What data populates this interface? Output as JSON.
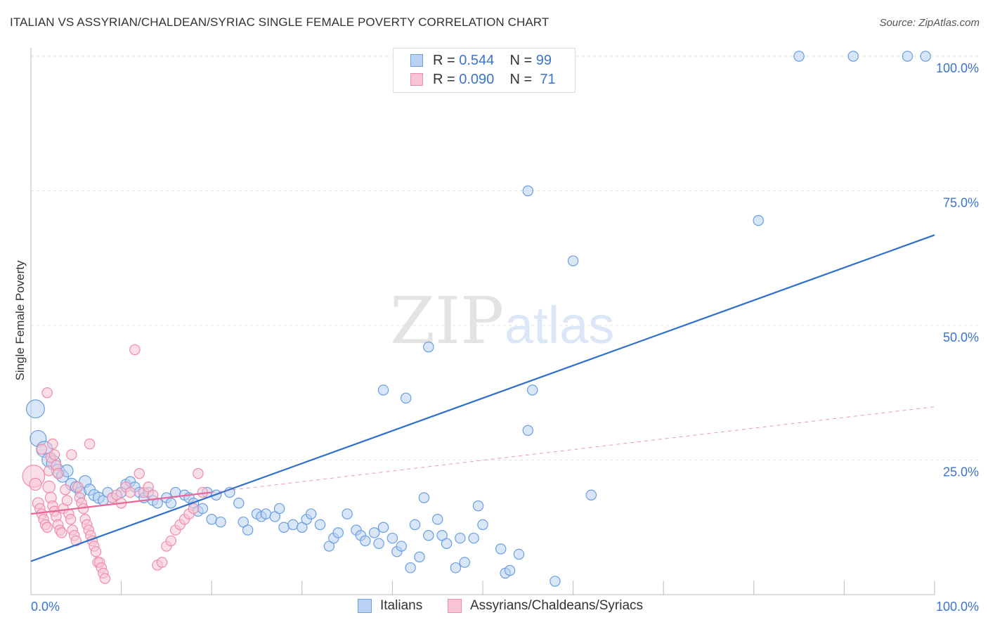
{
  "chart_data": {
    "type": "scatter",
    "title": "ITALIAN VS ASSYRIAN/CHALDEAN/SYRIAC SINGLE FEMALE POVERTY CORRELATION CHART",
    "source": "Source: ZipAtlas.com",
    "ylabel": "Single Female Poverty",
    "xlabel": "",
    "xlim": [
      0,
      100
    ],
    "ylim": [
      0,
      100
    ],
    "x_tick_labels": [
      "0.0%",
      "100.0%"
    ],
    "y_ticks": [
      25,
      50,
      75,
      100
    ],
    "y_tick_labels": [
      "25.0%",
      "50.0%",
      "75.0%",
      "100.0%"
    ],
    "grid": "dashed horizontal",
    "watermark": "ZIPatlas",
    "legend_position": "top-center",
    "stats": [
      {
        "r_label": "R =",
        "r_value": "0.544",
        "n_label": "N =",
        "n_value": "99"
      },
      {
        "r_label": "R =",
        "r_value": "0.090",
        "n_label": "N =",
        "n_value": "71"
      }
    ],
    "series": [
      {
        "name": "Italians",
        "color": "#6a9fe0",
        "fill": "#b9d1f3",
        "trend": {
          "x": [
            0,
            100
          ],
          "y": [
            6.2,
            66.8
          ],
          "style": "solid",
          "color": "#2f6fcc"
        },
        "points": [
          [
            0.5,
            34.5,
            18
          ],
          [
            0.8,
            29,
            16
          ],
          [
            1.5,
            27,
            16
          ],
          [
            2,
            25,
            14
          ],
          [
            2.5,
            24.5,
            14
          ],
          [
            3,
            23,
            13
          ],
          [
            3.5,
            22,
            12
          ],
          [
            4,
            23,
            12
          ],
          [
            4.5,
            20.5,
            12
          ],
          [
            5,
            20,
            11
          ],
          [
            5.5,
            19,
            11
          ],
          [
            6,
            21,
            12
          ],
          [
            6.5,
            19.5,
            11
          ],
          [
            7,
            18.5,
            11
          ],
          [
            7.5,
            18,
            11
          ],
          [
            8,
            17.5,
            10
          ],
          [
            8.5,
            19,
            10
          ],
          [
            9,
            18,
            10
          ],
          [
            10,
            19,
            10
          ],
          [
            10.5,
            20.5,
            10
          ],
          [
            11,
            21,
            10
          ],
          [
            11.5,
            20,
            10
          ],
          [
            12,
            19,
            10
          ],
          [
            12.5,
            18,
            10
          ],
          [
            13,
            19,
            10
          ],
          [
            13.5,
            17.5,
            10
          ],
          [
            14,
            17,
            10
          ],
          [
            15,
            18,
            10
          ],
          [
            15.5,
            17,
            10
          ],
          [
            16,
            19,
            10
          ],
          [
            17,
            18.5,
            10
          ],
          [
            17.5,
            18,
            10
          ],
          [
            18,
            17,
            10
          ],
          [
            18.5,
            15.5,
            10
          ],
          [
            19,
            16,
            10
          ],
          [
            19.5,
            19,
            10
          ],
          [
            20,
            14,
            10
          ],
          [
            20.5,
            18.5,
            10
          ],
          [
            21,
            13.5,
            10
          ],
          [
            22,
            19,
            10
          ],
          [
            23,
            17,
            10
          ],
          [
            23.5,
            13.5,
            10
          ],
          [
            24,
            12,
            10
          ],
          [
            25,
            15,
            10
          ],
          [
            25.5,
            14.5,
            10
          ],
          [
            26,
            15,
            10
          ],
          [
            27,
            14.5,
            10
          ],
          [
            27.5,
            16,
            10
          ],
          [
            28,
            12.5,
            10
          ],
          [
            29,
            13,
            10
          ],
          [
            30,
            12.5,
            10
          ],
          [
            30.5,
            14,
            10
          ],
          [
            31,
            15,
            10
          ],
          [
            32,
            13,
            10
          ],
          [
            33,
            9,
            10
          ],
          [
            33.5,
            10.5,
            10
          ],
          [
            34,
            11.5,
            10
          ],
          [
            35,
            15,
            10
          ],
          [
            36,
            12,
            10
          ],
          [
            36.5,
            11,
            10
          ],
          [
            37,
            10,
            10
          ],
          [
            38,
            11.5,
            10
          ],
          [
            38.5,
            9.5,
            10
          ],
          [
            39,
            12.5,
            10
          ],
          [
            40,
            10.5,
            10
          ],
          [
            40.5,
            8,
            10
          ],
          [
            41,
            9,
            10
          ],
          [
            42,
            5,
            10
          ],
          [
            42.5,
            13,
            10
          ],
          [
            43,
            7,
            10
          ],
          [
            43.5,
            18,
            10
          ],
          [
            44,
            11,
            10
          ],
          [
            45,
            14,
            10
          ],
          [
            45.5,
            11,
            10
          ],
          [
            46,
            9.5,
            10
          ],
          [
            47,
            5,
            10
          ],
          [
            47.5,
            10.5,
            10
          ],
          [
            48,
            6,
            10
          ],
          [
            39,
            38,
            10
          ],
          [
            41.5,
            36.5,
            10
          ],
          [
            44,
            46,
            10
          ],
          [
            49,
            10.5,
            10
          ],
          [
            49.5,
            16.5,
            10
          ],
          [
            50,
            13,
            10
          ],
          [
            52,
            8.5,
            10
          ],
          [
            52.5,
            4,
            10
          ],
          [
            53,
            4.5,
            10
          ],
          [
            54,
            7.5,
            10
          ],
          [
            55,
            30.5,
            10
          ],
          [
            55.5,
            38,
            10
          ],
          [
            58,
            2.5,
            10
          ],
          [
            60,
            62,
            10
          ],
          [
            55,
            75,
            10
          ],
          [
            62,
            18.5,
            10
          ],
          [
            85,
            100,
            10
          ],
          [
            91,
            100,
            10
          ],
          [
            97,
            100,
            10
          ],
          [
            99,
            100,
            10
          ],
          [
            80.5,
            69.5,
            10
          ]
        ]
      },
      {
        "name": "Assyrians/Chaldeans/Syriacs",
        "color": "#f08cab",
        "fill": "#f8c4d4",
        "trend": {
          "x": [
            0,
            20
          ],
          "y": [
            15,
            19
          ],
          "style": "solid",
          "color": "#e8679a",
          "extended": {
            "x": [
              20,
              100
            ],
            "y": [
              19,
              34.9
            ],
            "style": "dashed"
          }
        },
        "points": [
          [
            0.3,
            22,
            22
          ],
          [
            0.5,
            20.5,
            12
          ],
          [
            0.8,
            17,
            11
          ],
          [
            1,
            16,
            10
          ],
          [
            1.2,
            15,
            10
          ],
          [
            1.4,
            14,
            10
          ],
          [
            1.6,
            13,
            10
          ],
          [
            1.8,
            12.5,
            10
          ],
          [
            2,
            20,
            12
          ],
          [
            2.2,
            18,
            11
          ],
          [
            2.4,
            16.5,
            10
          ],
          [
            2.6,
            15.5,
            10
          ],
          [
            2.8,
            14.5,
            10
          ],
          [
            3,
            13,
            10
          ],
          [
            3.2,
            12,
            10
          ],
          [
            3.4,
            11.5,
            10
          ],
          [
            3.6,
            16,
            10
          ],
          [
            3.8,
            19.5,
            10
          ],
          [
            4,
            17.5,
            10
          ],
          [
            4.2,
            15,
            10
          ],
          [
            4.4,
            14,
            10
          ],
          [
            4.6,
            12,
            10
          ],
          [
            4.8,
            11,
            10
          ],
          [
            5,
            10,
            10
          ],
          [
            5.2,
            20,
            10
          ],
          [
            5.4,
            18,
            10
          ],
          [
            5.6,
            17,
            10
          ],
          [
            5.8,
            16,
            10
          ],
          [
            6,
            14,
            10
          ],
          [
            6.2,
            13,
            10
          ],
          [
            6.4,
            12,
            10
          ],
          [
            6.6,
            11,
            10
          ],
          [
            6.8,
            10,
            10
          ],
          [
            7,
            9,
            10
          ],
          [
            7.2,
            8,
            10
          ],
          [
            7.4,
            6,
            10
          ],
          [
            7.6,
            6,
            10
          ],
          [
            7.8,
            5,
            10
          ],
          [
            8,
            4,
            10
          ],
          [
            8.2,
            3,
            10
          ],
          [
            2,
            23,
            10
          ],
          [
            2.2,
            25.5,
            10
          ],
          [
            2.4,
            28,
            10
          ],
          [
            2.6,
            26,
            10
          ],
          [
            2.8,
            24,
            10
          ],
          [
            3,
            22.5,
            10
          ],
          [
            1.8,
            37.5,
            10
          ],
          [
            1.2,
            27,
            10
          ],
          [
            4.5,
            26,
            10
          ],
          [
            6.5,
            28,
            10
          ],
          [
            9,
            18,
            10
          ],
          [
            9.5,
            18.5,
            10
          ],
          [
            10,
            17,
            10
          ],
          [
            10.5,
            20,
            10
          ],
          [
            11,
            19,
            10
          ],
          [
            11.5,
            45.5,
            10
          ],
          [
            12,
            22.5,
            10
          ],
          [
            12.5,
            19,
            10
          ],
          [
            13,
            20,
            10
          ],
          [
            13.5,
            18.5,
            10
          ],
          [
            14,
            5.5,
            10
          ],
          [
            14.5,
            6,
            10
          ],
          [
            15,
            9,
            10
          ],
          [
            15.5,
            10,
            10
          ],
          [
            16,
            12,
            10
          ],
          [
            16.5,
            13,
            10
          ],
          [
            17,
            14,
            10
          ],
          [
            17.5,
            15,
            10
          ],
          [
            18,
            16,
            10
          ],
          [
            18.5,
            22.5,
            10
          ],
          [
            19,
            19,
            10
          ]
        ]
      }
    ]
  }
}
